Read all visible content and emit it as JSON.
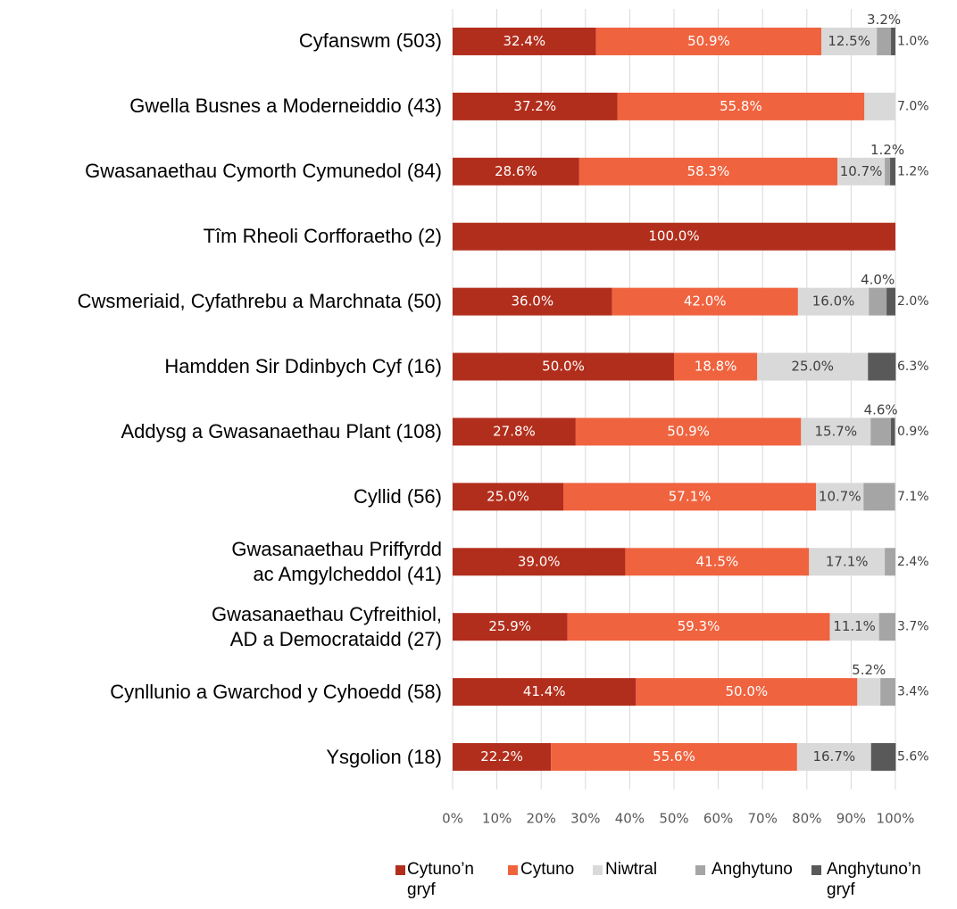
{
  "chart_data": {
    "type": "bar",
    "orientation": "horizontal",
    "stacked": true,
    "categories": [
      "Cyfanswm (503)",
      "Gwella Busnes a Moderneiddio (43)",
      "Gwasanaethau Cymorth Cymunedol (84)",
      "Tîm Rheoli Corfforaetho (2)",
      "Cwsmeriaid, Cyfathrebu a Marchnata (50)",
      "Hamdden Sir Ddinbych Cyf (16)",
      "Addysg a Gwasanaethau Plant (108)",
      "Cyllid (56)",
      "Gwasanaethau Priffyrdd\nac Amgylcheddol (41)",
      "Gwasanaethau Cyfreithiol,\nAD a Democrataidd (27)",
      "Cynllunio a Gwarchod y Cyhoedd (58)",
      "Ysgolion (18)"
    ],
    "series": [
      {
        "name": "Cytuno’n gryf",
        "color": "#b22e1c",
        "values": [
          32.4,
          37.2,
          28.6,
          100.0,
          36.0,
          50.0,
          27.8,
          25.0,
          39.0,
          25.9,
          41.4,
          22.2
        ],
        "value_labels": [
          "32.4%",
          "37.2%",
          "28.6%",
          "100.0%",
          "36.0%",
          "50.0%",
          "27.8%",
          "25.0%",
          "39.0%",
          "25.9%",
          "41.4%",
          "22.2%"
        ]
      },
      {
        "name": "Cytuno",
        "color": "#ef633f",
        "values": [
          50.9,
          55.8,
          58.3,
          null,
          42.0,
          18.8,
          50.9,
          57.1,
          41.5,
          59.3,
          50.0,
          55.6
        ],
        "value_labels": [
          "50.9%",
          "55.8%",
          "58.3%",
          null,
          "42.0%",
          "18.8%",
          "50.9%",
          "57.1%",
          "41.5%",
          "59.3%",
          "50.0%",
          "55.6%"
        ]
      },
      {
        "name": "Niwtral",
        "color": "#d9d9d9",
        "values": [
          12.5,
          7.0,
          10.7,
          null,
          16.0,
          25.0,
          15.7,
          10.7,
          17.1,
          11.1,
          5.2,
          16.7
        ],
        "value_labels": [
          "12.5%",
          "7.0%",
          "10.7%",
          null,
          "16.0%",
          "25.0%",
          "15.7%",
          "10.7%",
          "17.1%",
          "11.1%",
          "5.2%",
          "16.7%"
        ]
      },
      {
        "name": "Anghytuno",
        "color": "#a5a5a5",
        "values": [
          3.2,
          null,
          1.2,
          null,
          4.0,
          null,
          4.6,
          7.1,
          2.4,
          3.7,
          3.4,
          null
        ],
        "value_labels": [
          "3.2%",
          null,
          "1.2%",
          null,
          "4.0%",
          null,
          "4.6%",
          "7.1%",
          "2.4%",
          "3.7%",
          "3.4%",
          null
        ]
      },
      {
        "name": "Anghytuno’n gryf",
        "color": "#595959",
        "values": [
          1.0,
          null,
          1.2,
          null,
          2.0,
          6.3,
          0.9,
          null,
          null,
          null,
          null,
          5.6
        ],
        "value_labels": [
          "1.0%",
          null,
          "1.2%",
          null,
          "2.0%",
          "6.3%",
          "0.9%",
          null,
          null,
          null,
          null,
          "5.6%"
        ]
      }
    ],
    "xlim": [
      0,
      100
    ],
    "xticks": [
      {
        "value": 0,
        "label": "0%"
      },
      {
        "value": 10,
        "label": "10%"
      },
      {
        "value": 20,
        "label": "20%"
      },
      {
        "value": 30,
        "label": "30%"
      },
      {
        "value": 40,
        "label": "40%"
      },
      {
        "value": 50,
        "label": "50%"
      },
      {
        "value": 60,
        "label": "60%"
      },
      {
        "value": 70,
        "label": "70%"
      },
      {
        "value": 80,
        "label": "80%"
      },
      {
        "value": 90,
        "label": "90%"
      },
      {
        "value": 100,
        "label": "100%"
      }
    ],
    "grid": true,
    "legend": "bottom"
  }
}
